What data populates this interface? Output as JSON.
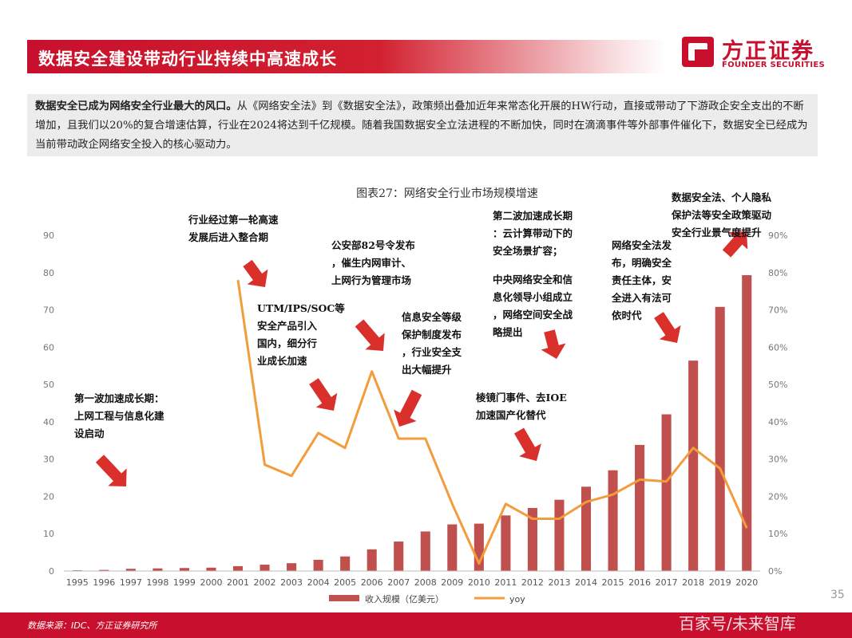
{
  "header": {
    "title": "数据安全建设带动行业持续中高速成长",
    "logo_cn": "方正证券",
    "logo_en": "FOUNDER SECURITIES"
  },
  "summary": {
    "lead": "数据安全已成为网络安全行业最大的风口。",
    "body": "从《网络安全法》到《数据安全法》，政策频出叠加近年来常态化开展的HW行动，直接或带动了下游政企安全支出的不断增加，且我们以20%的复合增速估算，行业在2024将达到千亿规模。随着我国数据安全立法进程的不断加快，同时在滴滴事件等外部事件催化下，数据安全已经成为当前带动政企网络安全投入的核心驱动力。"
  },
  "chart_data": {
    "type": "bar",
    "title": "图表27：网络安全行业市场规模增速",
    "categories": [
      "1995",
      "1996",
      "1997",
      "1998",
      "1999",
      "2000",
      "2001",
      "2002",
      "2003",
      "2004",
      "2005",
      "2006",
      "2007",
      "2008",
      "2009",
      "2010",
      "2011",
      "2012",
      "2013",
      "2014",
      "2015",
      "2016",
      "2017",
      "2018",
      "2019",
      "2020"
    ],
    "series": [
      {
        "name": "收入规模（亿美元）",
        "type": "bar",
        "axis": "left",
        "values": [
          0.2,
          0.3,
          0.6,
          0.7,
          0.8,
          0.9,
          1.3,
          1.7,
          2.1,
          3.0,
          3.9,
          5.8,
          7.9,
          10.6,
          12.5,
          12.7,
          14.9,
          16.9,
          19.1,
          22.6,
          27.0,
          33.8,
          42.0,
          56.4,
          70.8,
          79.3
        ]
      },
      {
        "name": "yoy",
        "type": "line",
        "axis": "right",
        "start_index": 6,
        "values": [
          null,
          null,
          null,
          null,
          null,
          null,
          78,
          28.5,
          25.5,
          37,
          33,
          53.5,
          35.5,
          35.5,
          18,
          2,
          18,
          14,
          14,
          18.5,
          20.5,
          24.5,
          24,
          33,
          27.5,
          11.5
        ]
      }
    ],
    "left_axis": {
      "min": 0,
      "max": 90,
      "ticks": [
        "0",
        "10",
        "20",
        "30",
        "40",
        "50",
        "60",
        "70",
        "80",
        "90"
      ]
    },
    "right_axis": {
      "min": 0,
      "max": 90,
      "ticks": [
        "0%",
        "10%",
        "20%",
        "30%",
        "40%",
        "50%",
        "60%",
        "70%",
        "80%",
        "90%"
      ]
    },
    "legend": [
      "收入规模（亿美元）",
      "yoy"
    ],
    "legend_position": "bottom",
    "grid": false,
    "colors": {
      "bar": "#c0504d",
      "line": "#f39c3c",
      "brand": "#c8102e"
    }
  },
  "annotations": [
    {
      "lines": [
        "第一波加速成长期：",
        "上网工程与信息化建",
        "设启动"
      ]
    },
    {
      "lines": [
        "行业经过第一轮高速",
        "发展后进入整合期"
      ]
    },
    {
      "lines": [
        "UTM/IPS/SOC等",
        "安全产品引入",
        "国内，细分行",
        "业成长加速"
      ]
    },
    {
      "lines": [
        "公安部82号令发布",
        "，催生内网审计、",
        "上网行为管理市场"
      ]
    },
    {
      "lines": [
        "信息安全等级",
        "保护制度发布",
        "，行业安全支",
        "出大幅提升"
      ]
    },
    {
      "lines": [
        "第二波加速成长期",
        "：云计算带动下的",
        "安全场景扩容；"
      ]
    },
    {
      "lines": [
        "中央网络安全和信",
        "息化领导小组成立",
        "，网络空间安全战",
        "略提出"
      ]
    },
    {
      "lines": [
        "棱镜门事件、去IOE",
        "加速国产化替代"
      ]
    },
    {
      "lines": [
        "网络安全法发",
        "布，明确安全",
        "责任主体，安",
        "全进入有法可",
        "依时代"
      ]
    },
    {
      "lines": [
        "数据安全法、个人隐私",
        "保护法等安全政策驱动",
        "安全行业景气度提升"
      ]
    }
  ],
  "footer": {
    "source": "数据来源：IDC、方正证券研究所",
    "page": "35",
    "watermark": "百家号/未来智库"
  }
}
